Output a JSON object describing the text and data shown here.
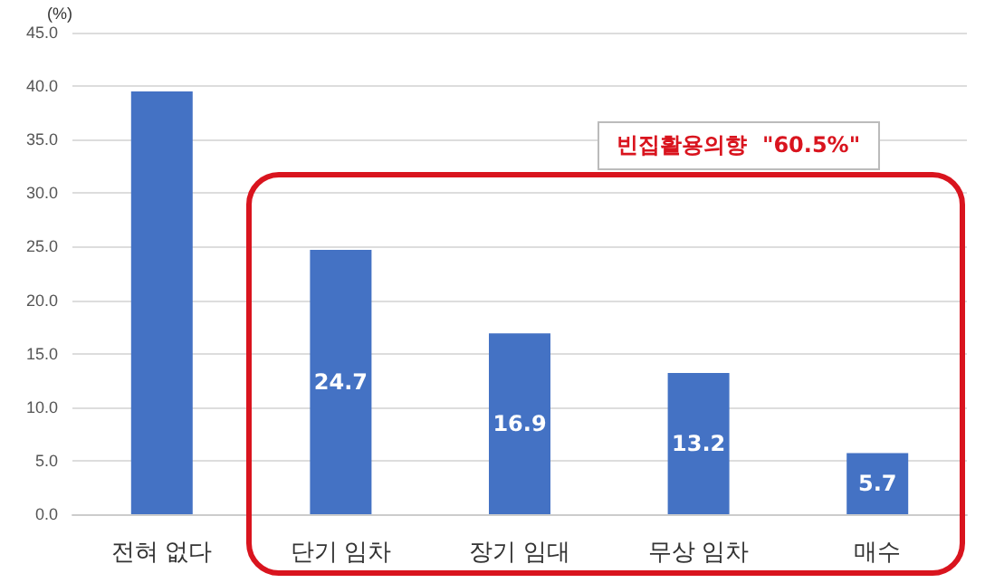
{
  "chart_data": {
    "type": "bar",
    "ylabel": "(%)",
    "categories": [
      "전혀 없다",
      "단기 임차",
      "장기 임대",
      "무상 임차",
      "매수"
    ],
    "values": [
      39.5,
      24.7,
      16.9,
      13.2,
      5.7
    ],
    "value_labels": [
      null,
      "24.7",
      "16.9",
      "13.2",
      "5.7"
    ],
    "color": "#4472c4",
    "ylim": [
      0,
      45
    ],
    "yticks": [
      {
        "value": 0,
        "label": "0.0"
      },
      {
        "value": 5,
        "label": "5.0"
      },
      {
        "value": 10,
        "label": "10.0"
      },
      {
        "value": 15,
        "label": "15.0"
      },
      {
        "value": 20,
        "label": "20.0"
      },
      {
        "value": 25,
        "label": "25.0"
      },
      {
        "value": 30,
        "label": "30.0"
      },
      {
        "value": 35,
        "label": "35.0"
      },
      {
        "value": 40,
        "label": "40.0"
      },
      {
        "value": 45,
        "label": "45.0"
      }
    ],
    "grid": "y",
    "annotations": [
      "빈집활용의향  \"60.5%\""
    ]
  }
}
